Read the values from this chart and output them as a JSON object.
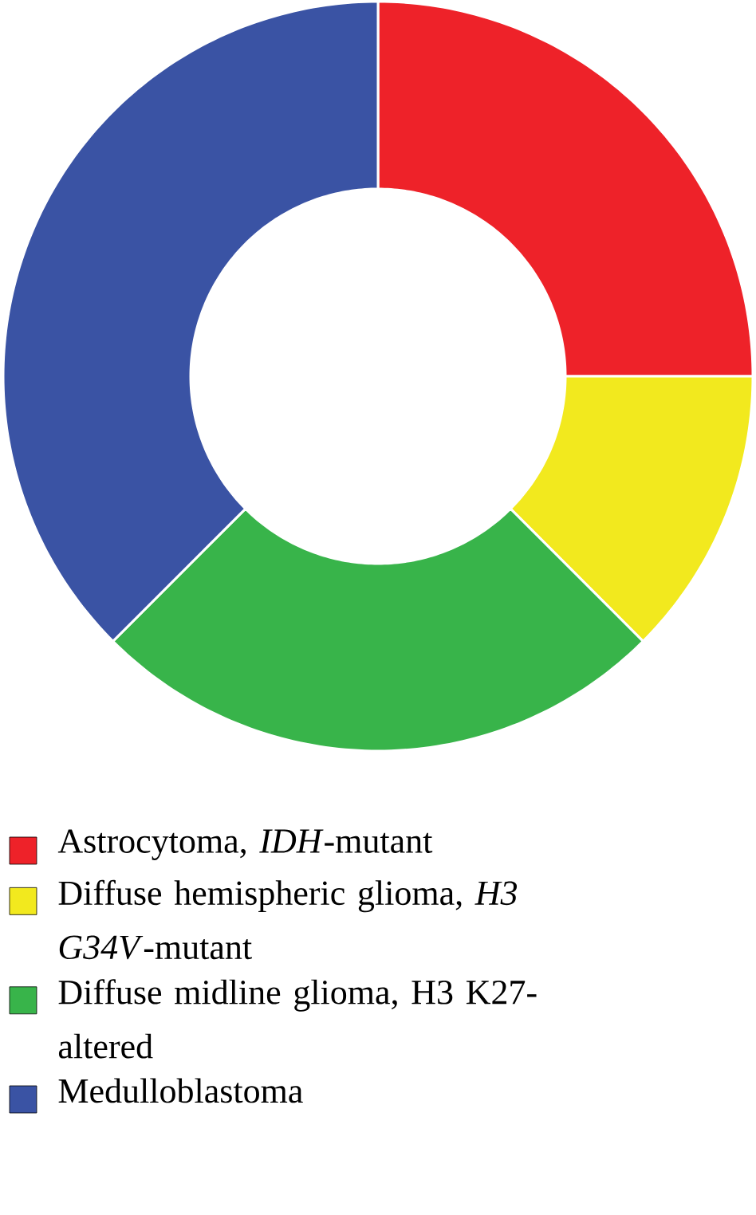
{
  "chart_data": {
    "type": "donut",
    "categories": [
      "Astrocytoma, *IDH*-mutant",
      "Diffuse hemispheric glioma, *H3 G34V*-mutant",
      "Diffuse midline glioma, H3 K27-altered",
      "Medulloblastoma"
    ],
    "values": [
      25,
      12.5,
      25,
      37.5
    ],
    "colors": [
      "#ee2229",
      "#f2e91e",
      "#38b44a",
      "#3a53a4"
    ],
    "legend": "bottom"
  }
}
